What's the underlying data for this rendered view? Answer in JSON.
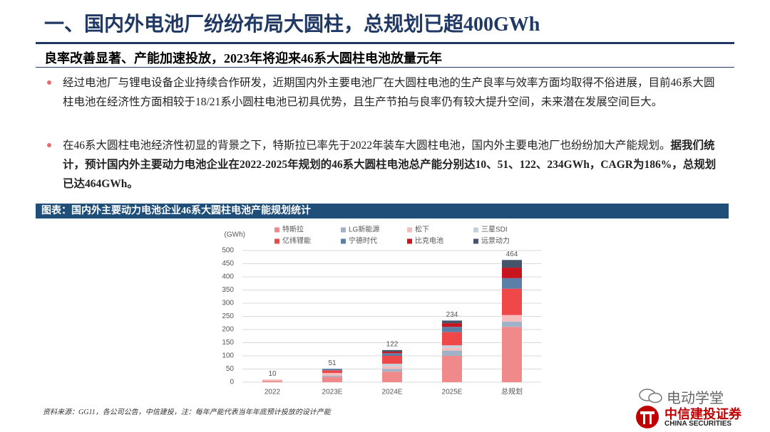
{
  "header": {
    "title": "一、国内外电池厂纷纷布局大圆柱，总规划已超400GWh",
    "subtitle": "良率改善显著、产能加速投放，2023年将迎来46系大圆柱电池放量元年"
  },
  "bullets": [
    {
      "text": "经过电池厂与锂电设备企业持续合作研发，近期国内外主要电池厂在大圆柱电池的生产良率与效率方面均取得不俗进展，目前46系大圆柱电池在经济性方面相较于18/21系小圆柱电池已初具优势，且生产节拍与良率仍有较大提升空间，未来潜在发展空间巨大。"
    },
    {
      "text": "在46系大圆柱电池经济性初显的背景之下，特斯拉已率先于2022年装车大圆柱电池，国内外主要电池厂也纷纷加大产能规划。",
      "bold": "据我们统计，预计国内外主要动力电池企业在2022-2025年规划的46系大圆柱电池总产能分别达10、51、122、234GWh，CAGR为186%，总规划已达464GWh。"
    }
  ],
  "chart_header": "图表：国内外主要动力电池企业46系大圆柱电池产能规划统计",
  "source": "资料来源：GG11，各公司公告，中信建投，注：每年产能代表当年年底预计投放的设计产能",
  "watermark": "电动学堂",
  "logo": {
    "name": "中信建投证券",
    "english": "CHINA SECURITIES"
  },
  "chart_data": {
    "type": "stacked_bar",
    "y_label": "(GWh)",
    "categories": [
      "2022",
      "2023E",
      "2024E",
      "2025E",
      "总规划"
    ],
    "series": [
      {
        "name": "特斯拉",
        "color": "#f08a8a",
        "values": [
          5,
          20,
          40,
          100,
          210
        ]
      },
      {
        "name": "LG新能源",
        "color": "#9fb2c8",
        "values": [
          0,
          5,
          10,
          20,
          20
        ]
      },
      {
        "name": "松下",
        "color": "#f6bcbc",
        "values": [
          5,
          10,
          10,
          10,
          25
        ]
      },
      {
        "name": "三星SDI",
        "color": "#c3d0de",
        "values": [
          0,
          0,
          10,
          10,
          0
        ]
      },
      {
        "name": "亿纬锂能",
        "color": "#f04848",
        "values": [
          0,
          10,
          30,
          50,
          100
        ]
      },
      {
        "name": "宁德时代",
        "color": "#5b7fa6",
        "values": [
          0,
          6,
          10,
          20,
          40
        ]
      },
      {
        "name": "比克电池",
        "color": "#c8141e",
        "values": [
          0,
          0,
          6,
          14,
          40
        ]
      },
      {
        "name": "远景动力",
        "color": "#44546a",
        "values": [
          0,
          0,
          6,
          10,
          29
        ]
      }
    ],
    "totals": [
      10,
      51,
      122,
      234,
      464
    ],
    "ylim": [
      0,
      500
    ],
    "yticks": [
      0,
      50,
      100,
      150,
      200,
      250,
      300,
      350,
      400,
      450,
      500
    ],
    "grid": true
  }
}
